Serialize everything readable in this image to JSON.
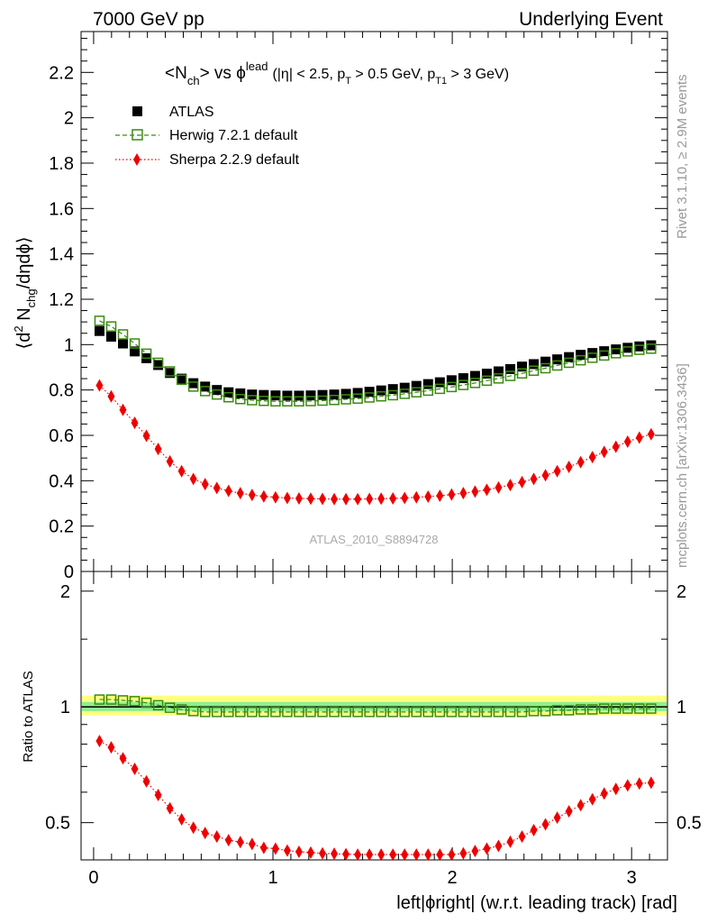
{
  "header": {
    "left": "7000 GeV pp",
    "right": "Underlying Event"
  },
  "side_labels": {
    "rivet": "Rivet 3.1.10, ≥ 2.9M events",
    "mcplots": "mcplots.cern.ch [arXiv:1306.3436]"
  },
  "analysis_id": "ATLAS_2010_S8894728",
  "colors": {
    "atlas": "#000000",
    "herwig": "#3a8a10",
    "sherpa": "#ee0000",
    "band_outer": "#ffff80",
    "band_inner": "#90ee90"
  },
  "chart_data": [
    {
      "type": "scatter",
      "panel": "main",
      "title": "<Nch> vs φlead (|η| < 2.5, pT > 0.5 GeV, pT1 > 3 GeV)",
      "title_parts": {
        "a": "<N",
        "a_sub": "ch",
        "b": "> vs ϕ",
        "b_sup": "lead",
        "c": "(|η| < 2.5, p",
        "c_sub": "T",
        "d": " > 0.5 GeV, p",
        "d_sub": "T1",
        "e": " > 3 GeV)"
      },
      "ylabel": "⟨d² Nchg/dηdϕ⟩",
      "ylabel_parts": {
        "a": "⟨d",
        "a_sup": "2",
        "b": " N",
        "b_sub": "chg",
        "c": "/dηdϕ⟩"
      },
      "xlim": [
        -0.07,
        3.2
      ],
      "ylim": [
        0,
        2.38
      ],
      "yticks": [
        0,
        0.2,
        0.4,
        0.6,
        0.8,
        1,
        1.2,
        1.4,
        1.6,
        1.8,
        2,
        2.2
      ],
      "ytick_labels": [
        "0",
        "0.2",
        "0.4",
        "0.6",
        "0.8",
        "1",
        "1.2",
        "1.4",
        "1.6",
        "1.8",
        "2",
        "2.2"
      ],
      "legend_position": "top-left",
      "series": [
        {
          "name": "ATLAS",
          "marker": "square-filled",
          "values": [
            1.06,
            1.035,
            1.005,
            0.97,
            0.94,
            0.91,
            0.875,
            0.85,
            0.83,
            0.815,
            0.8,
            0.79,
            0.785,
            0.78,
            0.778,
            0.776,
            0.775,
            0.775,
            0.776,
            0.778,
            0.78,
            0.783,
            0.787,
            0.792,
            0.798,
            0.804,
            0.81,
            0.818,
            0.826,
            0.834,
            0.843,
            0.852,
            0.862,
            0.872,
            0.882,
            0.892,
            0.903,
            0.914,
            0.925,
            0.935,
            0.945,
            0.955,
            0.963,
            0.971,
            0.979,
            0.986,
            0.992,
            0.997
          ]
        },
        {
          "name": "Herwig 7.2.1 default",
          "marker": "square-open",
          "line": "dashed",
          "values": [
            1.105,
            1.08,
            1.045,
            1.005,
            0.96,
            0.92,
            0.882,
            0.845,
            0.815,
            0.795,
            0.78,
            0.768,
            0.76,
            0.755,
            0.752,
            0.75,
            0.75,
            0.75,
            0.751,
            0.753,
            0.756,
            0.759,
            0.762,
            0.767,
            0.772,
            0.777,
            0.783,
            0.79,
            0.797,
            0.805,
            0.813,
            0.822,
            0.831,
            0.841,
            0.851,
            0.862,
            0.873,
            0.885,
            0.896,
            0.908,
            0.92,
            0.931,
            0.942,
            0.952,
            0.962,
            0.97,
            0.977,
            0.982
          ]
        },
        {
          "name": "Sherpa 2.2.9 default",
          "marker": "diamond-filled",
          "line": "dotted",
          "values": [
            0.82,
            0.772,
            0.712,
            0.655,
            0.598,
            0.54,
            0.485,
            0.442,
            0.408,
            0.385,
            0.368,
            0.355,
            0.345,
            0.337,
            0.331,
            0.327,
            0.324,
            0.322,
            0.321,
            0.32,
            0.319,
            0.319,
            0.319,
            0.32,
            0.321,
            0.322,
            0.324,
            0.327,
            0.33,
            0.334,
            0.339,
            0.345,
            0.352,
            0.36,
            0.37,
            0.381,
            0.394,
            0.408,
            0.424,
            0.442,
            0.461,
            0.482,
            0.504,
            0.527,
            0.55,
            0.572,
            0.59,
            0.605
          ]
        }
      ],
      "x_points": "48 bins, centres from 0.033 to 3.108 rad (width 0.0654)"
    },
    {
      "type": "scatter",
      "panel": "ratio",
      "ylabel": "Ratio to ATLAS",
      "xlabel": "left|ϕright| (w.r.t. leading track) [rad]",
      "xlim": [
        -0.07,
        3.2
      ],
      "xticks": [
        0,
        1,
        2,
        3
      ],
      "xtick_labels": [
        "0",
        "1",
        "2",
        "3"
      ],
      "ylim": [
        0.4,
        2.25
      ],
      "yticks": [
        0.5,
        1,
        2
      ],
      "ytick_labels": [
        "0.5",
        "1",
        "2"
      ],
      "yscale": "log",
      "band": {
        "outer": [
          0.95,
          1.07
        ],
        "inner": [
          0.975,
          1.03
        ]
      },
      "series": [
        {
          "name": "Herwig 7.2.1 default",
          "values": [
            1.045,
            1.045,
            1.04,
            1.035,
            1.025,
            1.01,
            0.995,
            0.985,
            0.975,
            0.97,
            0.97,
            0.97,
            0.97,
            0.97,
            0.97,
            0.97,
            0.97,
            0.97,
            0.97,
            0.97,
            0.97,
            0.97,
            0.97,
            0.97,
            0.97,
            0.97,
            0.97,
            0.97,
            0.97,
            0.97,
            0.97,
            0.97,
            0.97,
            0.97,
            0.97,
            0.97,
            0.97,
            0.975,
            0.975,
            0.98,
            0.98,
            0.985,
            0.985,
            0.99,
            0.99,
            0.99,
            0.99,
            0.99
          ]
        },
        {
          "name": "Sherpa 2.2.9 default",
          "values": [
            0.815,
            0.785,
            0.735,
            0.69,
            0.64,
            0.59,
            0.545,
            0.51,
            0.485,
            0.47,
            0.46,
            0.45,
            0.445,
            0.44,
            0.43,
            0.428,
            0.423,
            0.42,
            0.418,
            0.416,
            0.415,
            0.414,
            0.413,
            0.413,
            0.413,
            0.413,
            0.413,
            0.413,
            0.413,
            0.413,
            0.413,
            0.416,
            0.422,
            0.428,
            0.435,
            0.446,
            0.46,
            0.478,
            0.495,
            0.515,
            0.535,
            0.555,
            0.575,
            0.595,
            0.612,
            0.625,
            0.632,
            0.635
          ]
        }
      ]
    }
  ]
}
